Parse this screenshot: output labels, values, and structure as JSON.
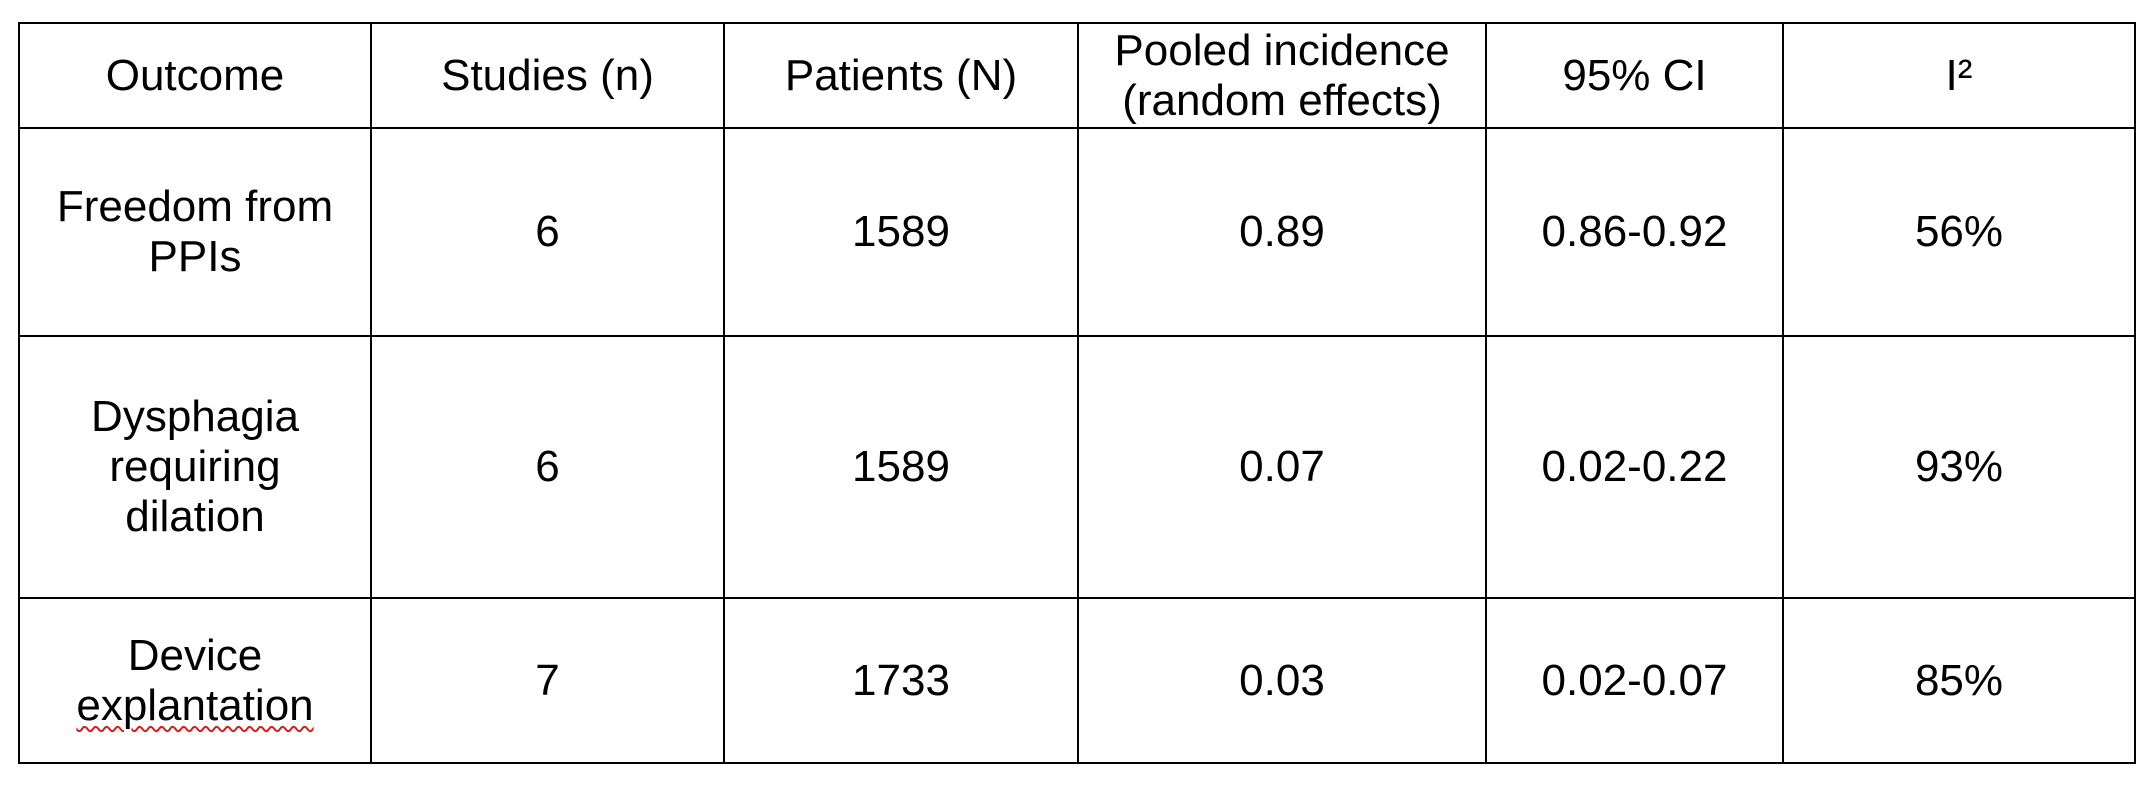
{
  "table": {
    "headers": [
      [
        "Outcome"
      ],
      [
        "Studies (n)"
      ],
      [
        "Patients (N)"
      ],
      [
        "Pooled incidence",
        "(random effects)"
      ],
      [
        "95% CI"
      ],
      [
        "I²"
      ]
    ],
    "rows": [
      {
        "outcome": [
          "Freedom from",
          "PPIs"
        ],
        "studies": "6",
        "patients": "1589",
        "pooled_incidence": "0.89",
        "ci": "0.86-0.92",
        "i2": "56%"
      },
      {
        "outcome": [
          "Dysphagia",
          "requiring",
          "dilation"
        ],
        "studies": "6",
        "patients": "1589",
        "pooled_incidence": "0.07",
        "ci": "0.02-0.22",
        "i2": "93%"
      },
      {
        "outcome": [
          "Device",
          "explantation"
        ],
        "studies": "7",
        "patients": "1733",
        "pooled_incidence": "0.03",
        "ci": "0.02-0.07",
        "i2": "85%"
      }
    ],
    "spellcheck_flag_color": "#d02020"
  }
}
